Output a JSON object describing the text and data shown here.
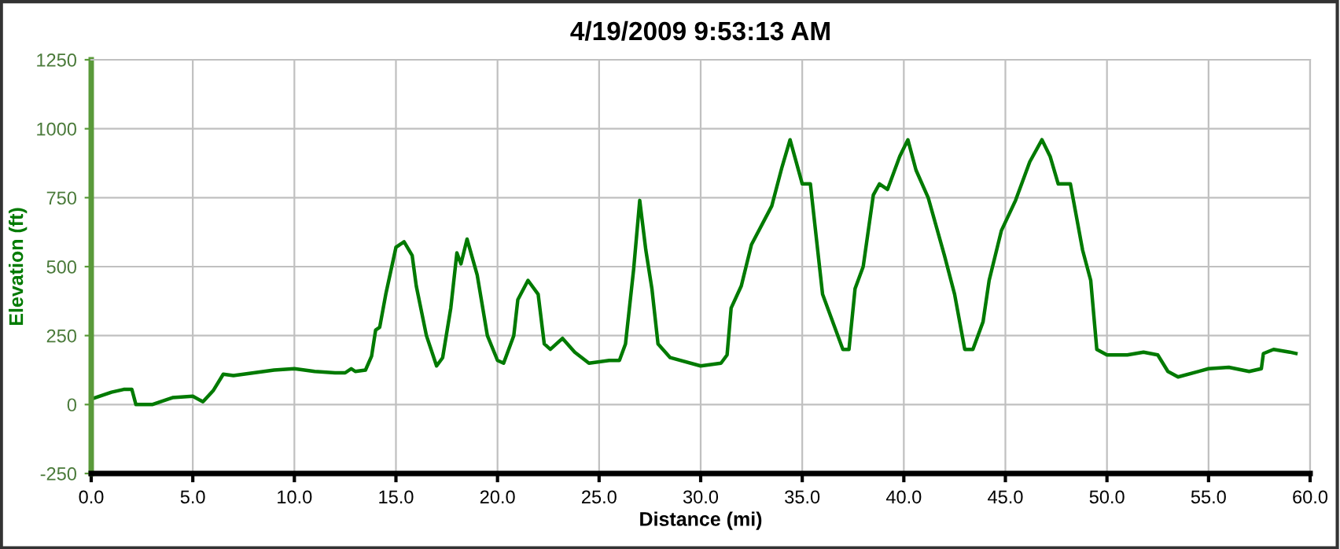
{
  "chart_data": {
    "type": "line",
    "title": "4/19/2009 9:53:13 AM",
    "xlabel": "Distance (mi)",
    "ylabel": "Elevation (ft)",
    "xlim": [
      0,
      60
    ],
    "xticks": [
      {
        "value": 0,
        "label": "0.0"
      },
      {
        "value": 5,
        "label": "5.0"
      },
      {
        "value": 10,
        "label": "10.0"
      },
      {
        "value": 15,
        "label": "15.0"
      },
      {
        "value": 20,
        "label": "20.0"
      },
      {
        "value": 25,
        "label": "25.0"
      },
      {
        "value": 30,
        "label": "30.0"
      },
      {
        "value": 35,
        "label": "35.0"
      },
      {
        "value": 40,
        "label": "40.0"
      },
      {
        "value": 45,
        "label": "45.0"
      },
      {
        "value": 50,
        "label": "50.0"
      },
      {
        "value": 55,
        "label": "55.0"
      },
      {
        "value": 60,
        "label": "60.0"
      }
    ],
    "ylim": [
      -250,
      1250
    ],
    "yticks": [
      -250,
      0,
      250,
      500,
      750,
      1000,
      1250
    ],
    "grid": true,
    "marker": "none",
    "line_style": "solid",
    "series": [
      {
        "color": "#007a00",
        "x": [
          0,
          1,
          1.6,
          2,
          2.2,
          3,
          4,
          5,
          5.5,
          6,
          6.5,
          7,
          8,
          9,
          10,
          11,
          12,
          12.5,
          12.8,
          13,
          13.5,
          13.8,
          14,
          14.2,
          14.5,
          15,
          15.4,
          15.8,
          16,
          16.5,
          17,
          17.3,
          17.7,
          18,
          18.2,
          18.5,
          19,
          19.5,
          20,
          20.3,
          20.8,
          21,
          21.5,
          22,
          22.3,
          22.6,
          23.2,
          23.8,
          24.5,
          25.5,
          26,
          26.3,
          26.7,
          27,
          27.3,
          27.6,
          27.9,
          28.5,
          30,
          31,
          31.3,
          31.5,
          32,
          32.5,
          33.5,
          34,
          34.4,
          35,
          35.4,
          35.7,
          36,
          37,
          37.3,
          37.6,
          38,
          38.5,
          38.8,
          39.2,
          39.8,
          40.2,
          40.6,
          41.2,
          42,
          42.5,
          43,
          43.4,
          43.9,
          44.2,
          44.8,
          45.5,
          46.2,
          46.8,
          47.2,
          47.6,
          48.2,
          48.8,
          49.2,
          49.5,
          50,
          51,
          51.8,
          52.5,
          53,
          53.5,
          55,
          56,
          57,
          57.6,
          57.7,
          58.2,
          59,
          59.3
        ],
        "values": [
          20,
          45,
          55,
          55,
          0,
          0,
          25,
          30,
          10,
          50,
          110,
          105,
          115,
          125,
          130,
          120,
          115,
          115,
          130,
          120,
          125,
          175,
          270,
          280,
          400,
          570,
          590,
          540,
          430,
          250,
          140,
          170,
          350,
          550,
          510,
          600,
          470,
          250,
          160,
          150,
          250,
          380,
          450,
          400,
          220,
          200,
          240,
          190,
          150,
          160,
          160,
          220,
          490,
          740,
          560,
          420,
          220,
          170,
          140,
          150,
          180,
          350,
          430,
          580,
          720,
          860,
          960,
          800,
          800,
          600,
          400,
          200,
          200,
          420,
          500,
          760,
          800,
          780,
          900,
          960,
          850,
          750,
          540,
          400,
          200,
          200,
          300,
          450,
          630,
          740,
          880,
          960,
          900,
          800,
          800,
          560,
          450,
          200,
          180,
          180,
          190,
          180,
          120,
          100,
          130,
          135,
          120,
          130,
          185,
          200,
          190,
          185
        ]
      }
    ]
  }
}
